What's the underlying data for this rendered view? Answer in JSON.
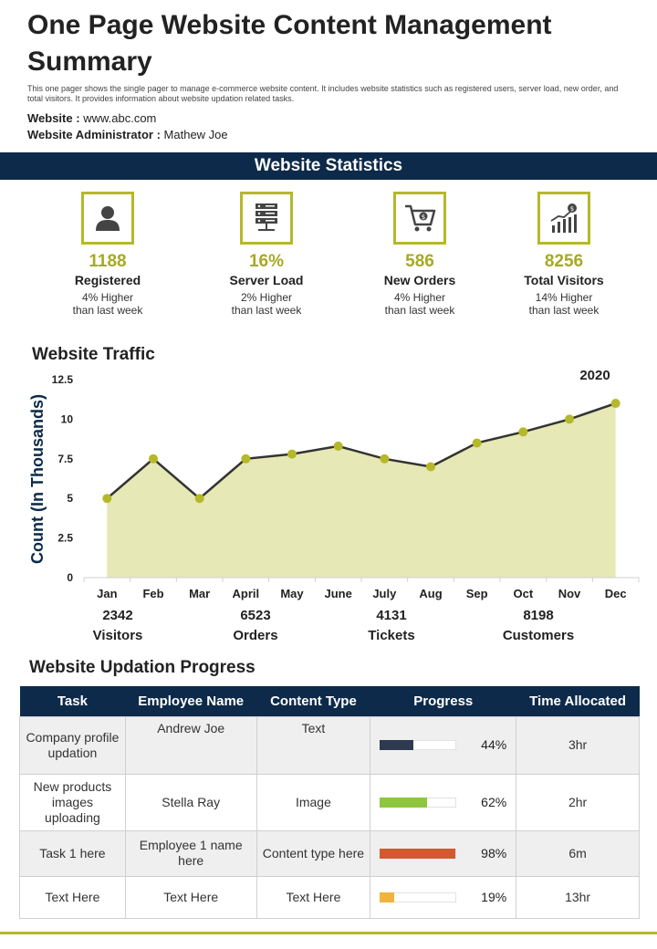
{
  "header": {
    "title": "One Page Website Content Management Summary",
    "description": "This one pager shows the single pager to manage e-commerce website content. It includes website statistics such as registered users, server load, new order, and total visitors. It provides information about website updation related tasks.",
    "website_label": "Website :",
    "website_value": "www.abc.com",
    "admin_label": "Website Administrator :",
    "admin_value": "Mathew Joe"
  },
  "stats": {
    "banner": "Website Statistics",
    "items": [
      {
        "icon": "user-icon",
        "value": "1188",
        "label": "Registered",
        "sub1": "4% Higher",
        "sub2": "than last week"
      },
      {
        "icon": "server-icon",
        "value": "16%",
        "label": "Server Load",
        "sub1": "2% Higher",
        "sub2": "than last week"
      },
      {
        "icon": "cart-icon",
        "value": "586",
        "label": "New Orders",
        "sub1": "4% Higher",
        "sub2": "than last week"
      },
      {
        "icon": "growth-chart-icon",
        "value": "8256",
        "label": "Total Visitors",
        "sub1": "14% Higher",
        "sub2": "than last week"
      }
    ]
  },
  "traffic": {
    "title": "Website Traffic"
  },
  "chart_data": {
    "type": "area",
    "title": "",
    "ylabel": "Count (In Thousands)",
    "xlabel": "",
    "annotation": "2020",
    "categories": [
      "Jan",
      "Feb",
      "Mar",
      "April",
      "May",
      "June",
      "July",
      "Aug",
      "Sep",
      "Oct",
      "Nov",
      "Dec"
    ],
    "values": [
      5,
      7.5,
      5,
      7.5,
      7.8,
      8.3,
      7.5,
      7,
      8.5,
      9.2,
      10,
      11
    ],
    "ylim": [
      0,
      12.5
    ],
    "yticks": [
      "0",
      "2.5",
      "5",
      "7.5",
      "10",
      "12.5"
    ],
    "grid": false,
    "colors": {
      "line": "#333333",
      "fill": "#e6e8b5",
      "marker": "#b5b82a"
    }
  },
  "metrics": [
    {
      "value": "2342",
      "label": "Visitors"
    },
    {
      "value": "6523",
      "label": "Orders"
    },
    {
      "value": "4131",
      "label": "Tickets"
    },
    {
      "value": "8198",
      "label": "Customers"
    }
  ],
  "progress": {
    "title": "Website Updation  Progress",
    "columns": [
      "Task",
      "Employee Name",
      "Content Type",
      "Progress",
      "Time Allocated"
    ],
    "rows": [
      {
        "task": "Company profile updation",
        "employee": "Andrew Joe",
        "content": "Text",
        "progress": 44,
        "progress_label": "44%",
        "color": "#2e3a4f",
        "time": "3hr"
      },
      {
        "task": "New products images uploading",
        "employee": "Stella Ray",
        "content": "Image",
        "progress": 62,
        "progress_label": "62%",
        "color": "#8dc63f",
        "time": "2hr"
      },
      {
        "task": "Task 1 here",
        "employee": "Employee 1 name here",
        "content": "Content type here",
        "progress": 98,
        "progress_label": "98%",
        "color": "#d35a2e",
        "time": "6m"
      },
      {
        "task": "Text Here",
        "employee": "Text Here",
        "content": "Text Here",
        "progress": 19,
        "progress_label": "19%",
        "color": "#f0b43c",
        "time": "13hr"
      }
    ]
  },
  "colors": {
    "navy": "#0d2a4a",
    "accent": "#b5b82a"
  }
}
